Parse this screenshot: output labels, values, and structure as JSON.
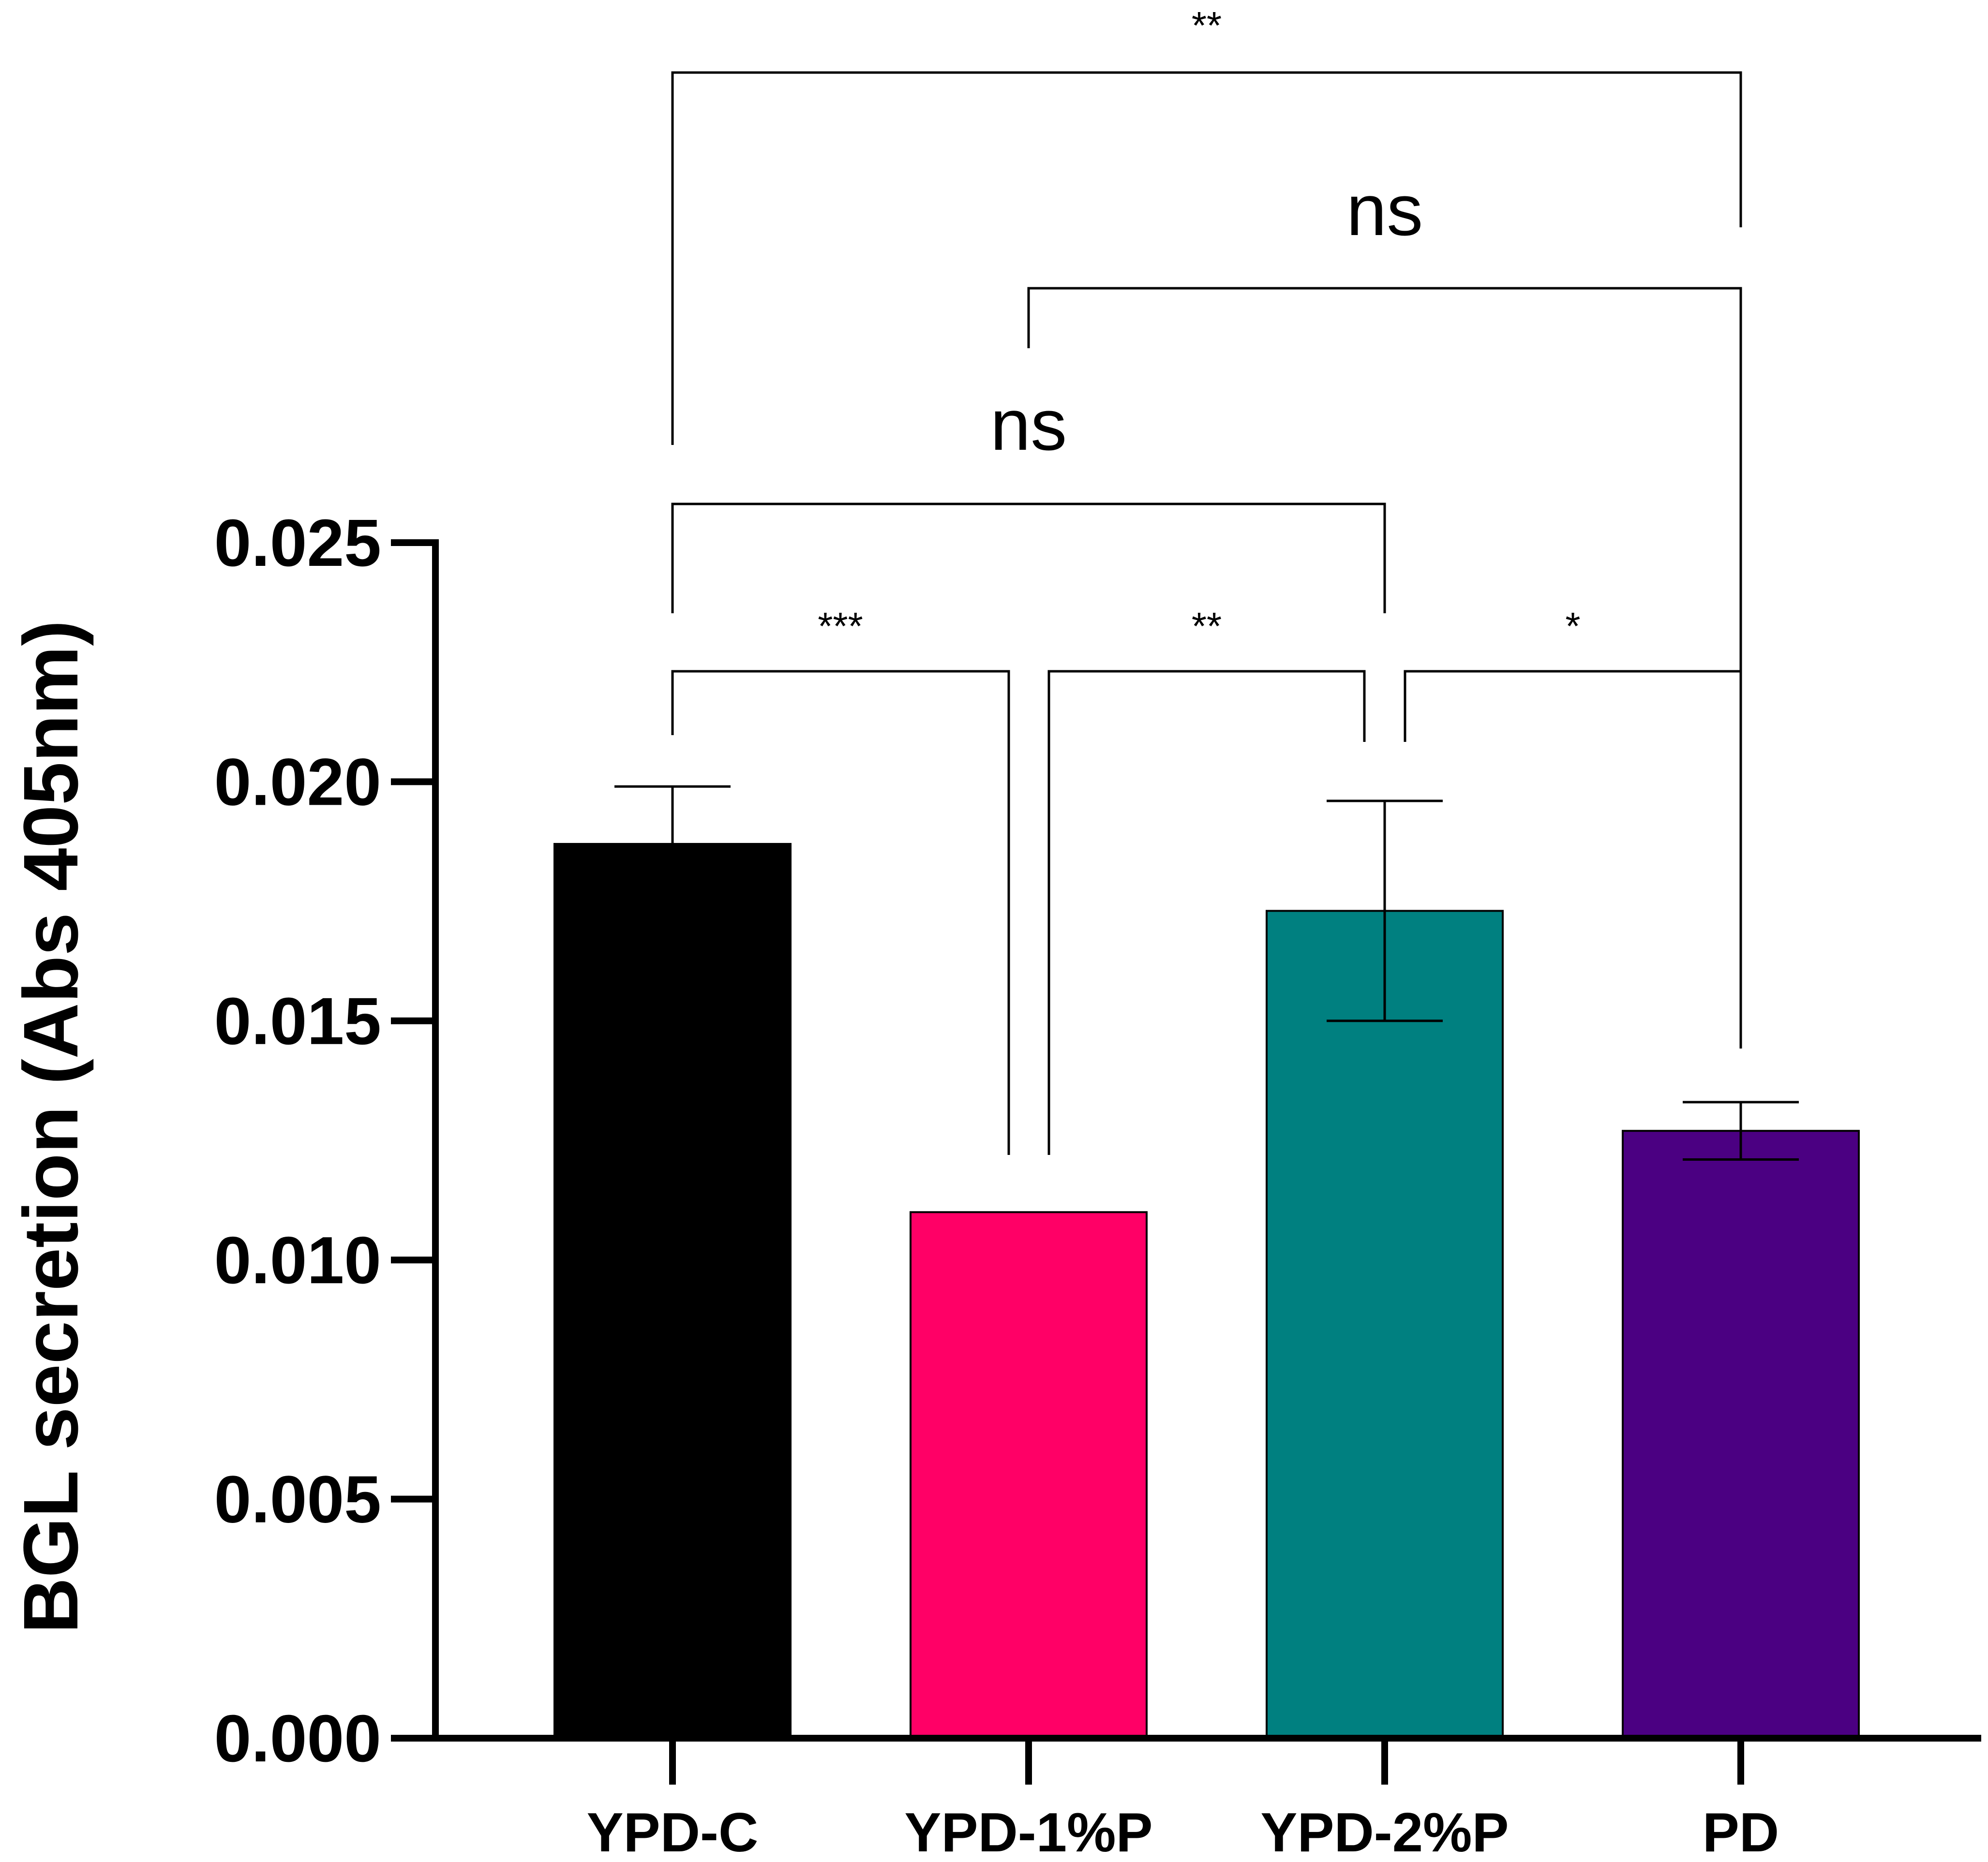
{
  "chart_data": {
    "type": "bar",
    "title": "",
    "xlabel": "",
    "ylabel": "BGL secretion (Abs 405nm)",
    "ylim": [
      0,
      0.025
    ],
    "yticks": [
      "0.000",
      "0.005",
      "0.010",
      "0.015",
      "0.020",
      "0.025"
    ],
    "ytick_values": [
      0,
      0.005,
      0.01,
      0.015,
      0.02,
      0.025
    ],
    "categories": [
      "YPD-C",
      "YPD-1%P",
      "YPD-2%P",
      "PD"
    ],
    "values": [
      0.0187,
      0.011,
      0.0173,
      0.0127
    ],
    "errors": [
      0.0012,
      0.0,
      0.0023,
      0.0006
    ],
    "colors": [
      "#000000",
      "#ff0066",
      "#008080",
      "#4b0082"
    ],
    "comparisons": [
      {
        "from": 0,
        "to": 1,
        "label": "***"
      },
      {
        "from": 1,
        "to": 2,
        "label": "**"
      },
      {
        "from": 2,
        "to": 3,
        "label": "*"
      },
      {
        "from": 0,
        "to": 2,
        "label": "ns"
      },
      {
        "from": 1,
        "to": 3,
        "label": "ns"
      },
      {
        "from": 0,
        "to": 3,
        "label": "**"
      }
    ]
  }
}
